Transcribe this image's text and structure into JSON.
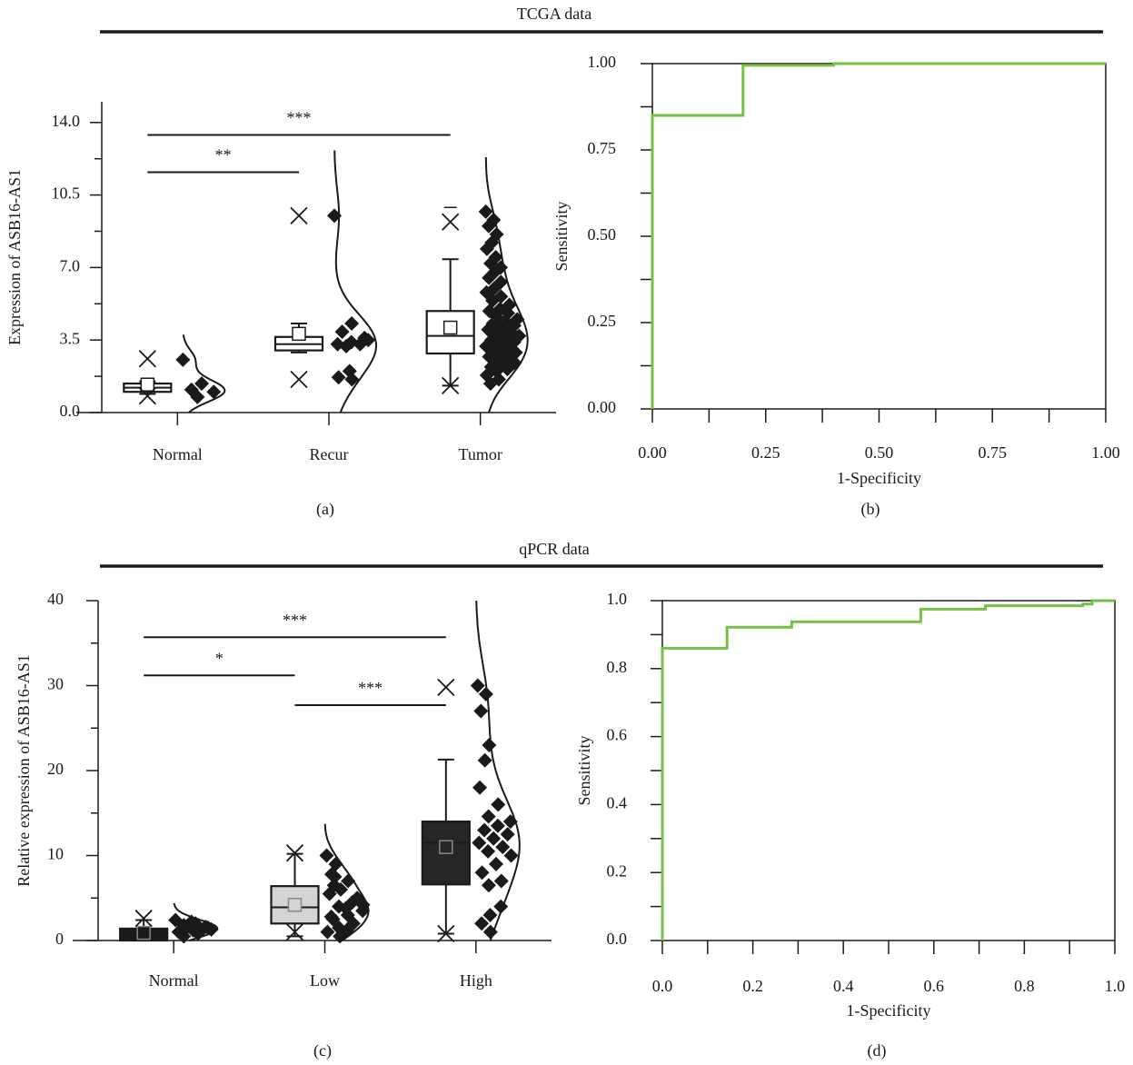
{
  "section_titles": [
    "TCGA data",
    "qPCR data"
  ],
  "chart_data": [
    {
      "type": "box",
      "panel": "(a)",
      "ylabel": "Expression of ASB16-AS1",
      "categories": [
        "Normal",
        "Recur",
        "Tumor"
      ],
      "ylim": [
        0,
        15
      ],
      "yticks": [
        {
          "value": 0,
          "label": "0.0"
        },
        3.5,
        {
          "value": 7,
          "label": "7.0"
        },
        10.5,
        {
          "value": 14,
          "label": "14.0"
        }
      ],
      "yminor": [
        1.75,
        5.25,
        8.75,
        12.25
      ],
      "box_fill": [
        "#ffffff",
        "#ffffff",
        "#ffffff"
      ],
      "boxes": [
        {
          "q1": 1.0,
          "median": 1.2,
          "q3": 1.4,
          "whisker_low": 0.9,
          "whisker_high": 1.5,
          "mean": 1.35,
          "p99": 2.6,
          "p1": 0.8,
          "points": [
            2.55,
            1.4,
            1.1,
            1.0,
            0.75
          ]
        },
        {
          "q1": 3.0,
          "median": 3.3,
          "q3": 3.65,
          "whisker_low": 2.9,
          "whisker_high": 4.3,
          "mean": 3.8,
          "p99": 9.5,
          "p1": 1.6,
          "points": [
            9.5,
            4.3,
            3.9,
            3.6,
            3.4,
            3.3,
            3.3,
            3.2,
            3.5,
            2.0,
            1.7,
            1.6
          ]
        },
        {
          "q1": 2.85,
          "median": 3.7,
          "q3": 4.9,
          "whisker_low": 1.3,
          "whisker_high": 7.4,
          "mean": 4.1,
          "p99": 9.2,
          "p1": 1.3,
          "max": 9.9,
          "points": [
            9.7,
            9.3,
            9.0,
            8.6,
            8.2,
            7.9,
            7.5,
            7.2,
            7.0,
            6.8,
            6.5,
            6.3,
            6.0,
            5.8,
            5.6,
            5.4,
            5.2,
            5.0,
            4.9,
            4.8,
            4.6,
            4.5,
            4.4,
            4.3,
            4.2,
            4.1,
            4.0,
            3.9,
            3.8,
            3.7,
            3.6,
            3.5,
            3.4,
            3.3,
            3.2,
            3.1,
            3.0,
            2.9,
            2.8,
            2.7,
            2.6,
            2.5,
            2.4,
            2.3,
            2.2,
            2.1,
            2.0,
            1.8,
            1.6,
            1.4
          ]
        }
      ],
      "annotations": [
        {
          "text": "**",
          "y": 11.6,
          "between": [
            "Normal",
            "Recur"
          ]
        },
        {
          "text": "***",
          "y": 13.4,
          "between": [
            "Normal",
            "Tumor"
          ]
        }
      ]
    },
    {
      "type": "line",
      "panel": "(b)",
      "xlabel": "1-Specificity",
      "ylabel": "Sensitivity",
      "color": "#76c043",
      "x": [
        0,
        0,
        0.2,
        0.2,
        0.4,
        0.4,
        1.0
      ],
      "values": [
        0,
        0.85,
        0.85,
        0.995,
        0.995,
        1.0,
        1.0
      ],
      "xlim": [
        0,
        1
      ],
      "ylim": [
        0,
        1
      ],
      "xticks": [
        {
          "value": 0,
          "label": "0.00"
        },
        0.25,
        {
          "value": 0.5,
          "label": "0.50"
        },
        0.75,
        {
          "value": 1,
          "label": "1.00"
        }
      ],
      "yticks": [
        {
          "value": 0,
          "label": "0.00"
        },
        0.25,
        {
          "value": 0.5,
          "label": "0.50"
        },
        0.75,
        {
          "value": 1,
          "label": "1.00"
        }
      ],
      "xminor": [
        0.125,
        0.375,
        0.625,
        0.875
      ],
      "yminor": [
        0.125,
        0.375,
        0.625,
        0.875
      ]
    },
    {
      "type": "box",
      "panel": "(c)",
      "ylabel": "Relative expression of ASB16-AS1",
      "categories": [
        "Normal",
        "Low",
        "High"
      ],
      "ylim": [
        0,
        40
      ],
      "yticks": [
        0,
        10,
        20,
        30,
        40
      ],
      "yminor": [
        5,
        15,
        25,
        35
      ],
      "box_fill": [
        "#1a1a1a",
        "#d4d4d4",
        "#262626"
      ],
      "boxes": [
        {
          "q1": 0,
          "median": 0.6,
          "q3": 1.4,
          "whisker_low": 0,
          "whisker_high": 2.4,
          "mean": 0.9,
          "p99": 2.6,
          "points": [
            2.4,
            2.0,
            1.8,
            1.5,
            1.2,
            1.0,
            0.8,
            0.5,
            1.3,
            2.2,
            0.9,
            1.6
          ]
        },
        {
          "q1": 2.0,
          "median": 3.9,
          "q3": 6.4,
          "whisker_low": 0.5,
          "whisker_high": 10.2,
          "mean": 4.2,
          "p99": 10.3,
          "p1": 1.0,
          "points": [
            10.0,
            9.0,
            7.8,
            7.0,
            6.0,
            5.5,
            4.5,
            4.0,
            3.5,
            3.0,
            2.5,
            2.0,
            1.5,
            1.0,
            0.5,
            6.5,
            5.0,
            3.8,
            2.8,
            1.2,
            7.5,
            4.2
          ]
        },
        {
          "q1": 6.6,
          "median": 11.5,
          "q3": 14.0,
          "whisker_low": 0.8,
          "whisker_high": 21.3,
          "mean": 11.0,
          "p99": 29.8,
          "p1": 0.8,
          "points": [
            30.0,
            29.0,
            27.0,
            23.0,
            21.2,
            18.0,
            16.0,
            14.6,
            14.0,
            13.5,
            13.0,
            12.5,
            12.0,
            11.5,
            11.0,
            10.5,
            10.0,
            9.0,
            8.0,
            7.0,
            6.5,
            4.0,
            3.0,
            2.0,
            1.0
          ]
        }
      ],
      "annotations": [
        {
          "text": "***",
          "y": 35.7,
          "between": [
            "Normal",
            "High"
          ]
        },
        {
          "text": "*",
          "y": 31.2,
          "between": [
            "Normal",
            "Low"
          ]
        },
        {
          "text": "***",
          "y": 27.7,
          "between": [
            "Low",
            "High"
          ]
        }
      ]
    },
    {
      "type": "line",
      "panel": "(d)",
      "xlabel": "1-Specificity",
      "ylabel": "Sensitivity",
      "color": "#76c043",
      "x": [
        0,
        0,
        0.143,
        0.143,
        0.286,
        0.286,
        0.571,
        0.571,
        0.714,
        0.714,
        0.929,
        0.929,
        0.95,
        0.95,
        1.0
      ],
      "values": [
        0,
        0.86,
        0.86,
        0.922,
        0.922,
        0.938,
        0.938,
        0.975,
        0.975,
        0.985,
        0.985,
        0.99,
        0.99,
        1.0,
        1.0
      ],
      "xlim": [
        0,
        1
      ],
      "ylim": [
        0,
        1
      ],
      "xticks": [
        {
          "value": 0,
          "label": "0.0"
        },
        0.2,
        0.4,
        0.6,
        0.8,
        {
          "value": 1,
          "label": "1.0"
        }
      ],
      "yticks": [
        {
          "value": 0,
          "label": "0.0"
        },
        0.2,
        0.4,
        0.6,
        0.8,
        {
          "value": 1,
          "label": "1.0"
        }
      ],
      "xminor": [
        0.1,
        0.3,
        0.5,
        0.7,
        0.9
      ],
      "yminor": [
        0.1,
        0.3,
        0.5,
        0.7,
        0.9
      ]
    }
  ]
}
